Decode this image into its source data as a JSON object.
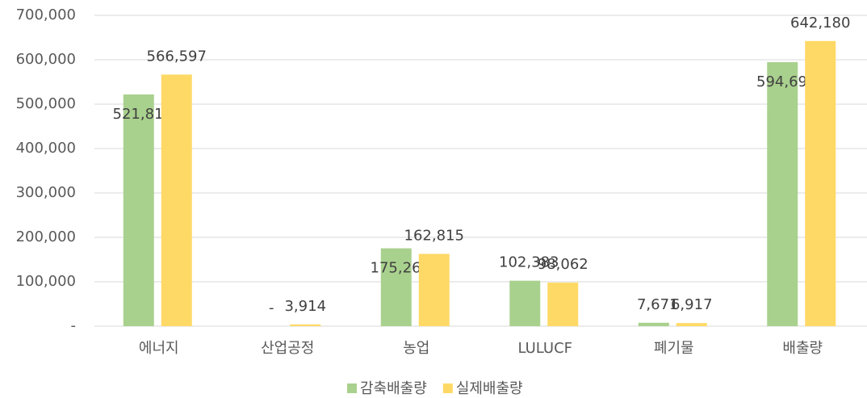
{
  "chart_data": {
    "type": "bar",
    "categories": [
      "에너지",
      "산업공정",
      "농업",
      "LULUCF",
      "폐기물",
      "배출량"
    ],
    "series": [
      {
        "name": "감축배출량",
        "color": "#a9d18e",
        "values": [
          521814,
          0,
          175265,
          102383,
          7671,
          594696
        ],
        "value_labels": [
          "521,814",
          "-",
          "175,265",
          "102,383",
          "7,671",
          "594,696"
        ]
      },
      {
        "name": "실제배출량",
        "color": "#ffd966",
        "values": [
          566597,
          3914,
          162815,
          98062,
          6917,
          642180
        ],
        "value_labels": [
          "566,597",
          "3,914",
          "162,815",
          "98,062",
          "6,917",
          "642,180"
        ]
      }
    ],
    "ylim": [
      0,
      700000
    ],
    "yticks": [
      {
        "value": 0,
        "label": "-"
      },
      {
        "value": 100000,
        "label": "100,000"
      },
      {
        "value": 200000,
        "label": "200,000"
      },
      {
        "value": 300000,
        "label": "300,000"
      },
      {
        "value": 400000,
        "label": "400,000"
      },
      {
        "value": 500000,
        "label": "500,000"
      },
      {
        "value": 600000,
        "label": "600,000"
      },
      {
        "value": 700000,
        "label": "700,000"
      }
    ],
    "grid": true,
    "legend": "bottom"
  }
}
